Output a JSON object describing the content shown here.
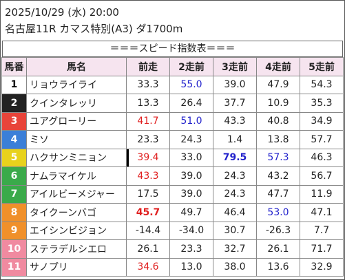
{
  "header": {
    "date": "2025/10/29 (水) 20:00",
    "race": "名古屋11R カマス特別(A3) ダ1700m"
  },
  "banner": "＝＝＝スピード指数表＝＝＝",
  "table": {
    "columns": [
      "馬番",
      "馬名",
      "前走",
      "2走前",
      "3走前",
      "4走前",
      "5走前"
    ],
    "rows": [
      {
        "number": "1",
        "frame_color": "#ffffff",
        "number_color": "#000000",
        "name": "リョウライライ",
        "scores": [
          {
            "text": "33.3"
          },
          {
            "text": "55.0",
            "color": "#2222cc"
          },
          {
            "text": "39.0"
          },
          {
            "text": "47.9"
          },
          {
            "text": "54.3"
          }
        ]
      },
      {
        "number": "2",
        "frame_color": "#222222",
        "number_color": "#ffffff",
        "name": "クインタレッリ",
        "scores": [
          {
            "text": "13.3"
          },
          {
            "text": "26.4"
          },
          {
            "text": "37.7"
          },
          {
            "text": "10.9"
          },
          {
            "text": "35.3"
          }
        ]
      },
      {
        "number": "3",
        "frame_color": "#e8443a",
        "number_color": "#ffffff",
        "name": "ユアグローリー",
        "scores": [
          {
            "text": "41.7",
            "color": "#e02020"
          },
          {
            "text": "51.0",
            "color": "#2222cc"
          },
          {
            "text": "43.3"
          },
          {
            "text": "40.8"
          },
          {
            "text": "34.9"
          }
        ]
      },
      {
        "number": "4",
        "frame_color": "#3b7fd8",
        "number_color": "#ffffff",
        "name": "ミソ",
        "scores": [
          {
            "text": "23.3"
          },
          {
            "text": "24.3"
          },
          {
            "text": "1.4"
          },
          {
            "text": "13.8"
          },
          {
            "text": "57.7"
          }
        ]
      },
      {
        "number": "5",
        "frame_color": "#e8d21c",
        "number_color": "#ffffff",
        "name": "ハクサンミニョン",
        "scores": [
          {
            "text": "39.4",
            "color": "#e02020"
          },
          {
            "text": "33.0"
          },
          {
            "text": "79.5",
            "color": "#2222cc",
            "bold": true
          },
          {
            "text": "57.3",
            "color": "#2222cc"
          },
          {
            "text": "46.3"
          }
        ]
      },
      {
        "number": "6",
        "frame_color": "#3aaa4a",
        "number_color": "#ffffff",
        "name": "ナムラマイケル",
        "scores": [
          {
            "text": "43.3",
            "color": "#e02020"
          },
          {
            "text": "39.0"
          },
          {
            "text": "24.3"
          },
          {
            "text": "43.2"
          },
          {
            "text": "56.7"
          }
        ]
      },
      {
        "number": "7",
        "frame_color": "#3aaa4a",
        "number_color": "#ffffff",
        "name": "アイルビーメジャー",
        "scores": [
          {
            "text": "17.5"
          },
          {
            "text": "39.0"
          },
          {
            "text": "24.3"
          },
          {
            "text": "47.7"
          },
          {
            "text": "11.9"
          }
        ]
      },
      {
        "number": "8",
        "frame_color": "#f0902a",
        "number_color": "#ffffff",
        "name": "タイクーンバゴ",
        "scores": [
          {
            "text": "45.7",
            "color": "#e02020",
            "bold": true
          },
          {
            "text": "49.7"
          },
          {
            "text": "46.4"
          },
          {
            "text": "53.0",
            "color": "#2222cc"
          },
          {
            "text": "47.1"
          }
        ]
      },
      {
        "number": "9",
        "frame_color": "#f0902a",
        "number_color": "#ffffff",
        "name": "エイシンビジョン",
        "scores": [
          {
            "text": "-14.4"
          },
          {
            "text": "-34.0"
          },
          {
            "text": "30.7"
          },
          {
            "text": "-26.3"
          },
          {
            "text": "7.7"
          }
        ]
      },
      {
        "number": "10",
        "frame_color": "#f08aa0",
        "number_color": "#ffffff",
        "name": "ステラデルシエロ",
        "scores": [
          {
            "text": "26.1"
          },
          {
            "text": "23.3"
          },
          {
            "text": "32.7"
          },
          {
            "text": "26.1"
          },
          {
            "text": "71.7"
          }
        ]
      },
      {
        "number": "11",
        "frame_color": "#f08aa0",
        "number_color": "#ffffff",
        "name": "サノプリ",
        "scores": [
          {
            "text": "34.6",
            "color": "#e02020"
          },
          {
            "text": "13.0"
          },
          {
            "text": "38.0"
          },
          {
            "text": "13.6"
          },
          {
            "text": "32.9"
          }
        ]
      }
    ]
  }
}
